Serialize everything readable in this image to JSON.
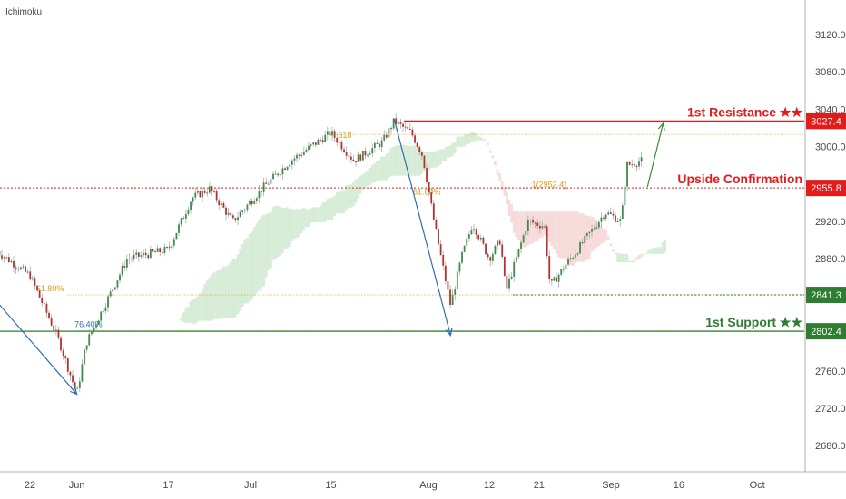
{
  "indicator": "Ichimoku",
  "colors": {
    "up": "#3e8c4a",
    "down": "#b5312e",
    "resistance": "#e31b1b",
    "confirmation": "#e31b1b",
    "support": "#2e7d32",
    "support_minor": "#2e7d32",
    "fib": "#d4a017",
    "arrow_down": "#2f6db5",
    "arrow_up": "#3a8a3a",
    "cloud_green": "#cfe9cf",
    "cloud_red": "#f6d3d3"
  },
  "chart_data": {
    "type": "candlestick",
    "ylim": [
      2648,
      3152
    ],
    "yticks": [
      3120.0,
      3080.0,
      3040.0,
      3000.0,
      2960.0,
      2920.0,
      2880.0,
      2840.0,
      2800.0,
      2760.0,
      2720.0,
      2680.0
    ],
    "xticks": [
      "22",
      "Jun",
      "17",
      "Jul",
      "15",
      "Aug",
      "12",
      "21",
      "Sep",
      "16",
      "Oct"
    ],
    "price_path": [
      [
        "May 15",
        2888
      ],
      [
        "May 22",
        2862
      ],
      [
        "May 28",
        2795
      ],
      [
        "Jun 1",
        2735
      ],
      [
        "Jun 3",
        2790
      ],
      [
        "Jun 10",
        2880
      ],
      [
        "Jun 17",
        2890
      ],
      [
        "Jun 21",
        2945
      ],
      [
        "Jun 24",
        2955
      ],
      [
        "Jun 28",
        2920
      ],
      [
        "Jul 3",
        2955
      ],
      [
        "Jul 8",
        2985
      ],
      [
        "Jul 15",
        3015
      ],
      [
        "Jul 19",
        2985
      ],
      [
        "Jul 24",
        3005
      ],
      [
        "Jul 26",
        3027
      ],
      [
        "Jul 29",
        3015
      ],
      [
        "Jul 31",
        2990
      ],
      [
        "Aug 2",
        2920
      ],
      [
        "Aug 5",
        2830
      ],
      [
        "Aug 7",
        2882
      ],
      [
        "Aug 9",
        2918
      ],
      [
        "Aug 12",
        2880
      ],
      [
        "Aug 14",
        2900
      ],
      [
        "Aug 15",
        2845
      ],
      [
        "Aug 19",
        2920
      ],
      [
        "Aug 22",
        2915
      ],
      [
        "Aug 23",
        2850
      ],
      [
        "Aug 26",
        2875
      ],
      [
        "Aug 28",
        2890
      ],
      [
        "Sep 2",
        2930
      ],
      [
        "Sep 5",
        2920
      ],
      [
        "Sep 6",
        2980
      ],
      [
        "Sep 9",
        2985
      ]
    ],
    "levels": [
      {
        "name": "1st Resistance ★★",
        "price": 3027.4,
        "tag": "3027.4",
        "color": "resistance",
        "style": "solid"
      },
      {
        "name": "Upside Confirmation",
        "price": 2955.8,
        "tag": "2955.8",
        "color": "confirmation",
        "style": "dotted"
      },
      {
        "name": "1st Support ★★",
        "price": 2802.4,
        "tag": "2802.4",
        "color": "support",
        "style": "solid"
      },
      {
        "name": "",
        "price": 2841.3,
        "tag": "2841.3",
        "color": "support_minor",
        "style": "dotted"
      }
    ],
    "fib_lines": [
      {
        "price": 3013,
        "label": "618",
        "x1": "Jul 15",
        "x2": "Oct 10"
      },
      {
        "price": 2952.4,
        "label": "61.80%",
        "x2": "Oct 10"
      },
      {
        "price": 2952.4,
        "label": "1(2952.4)",
        "x1": "Aug 19",
        "x2": "Oct 10"
      },
      {
        "price": 2841.3,
        "label": "61.80%",
        "x1": "May 30",
        "x2": "Oct 10"
      },
      {
        "price": 2803,
        "label": "76.40%",
        "x1": "Jun 1",
        "x2": "Oct 10"
      }
    ],
    "arrows": [
      {
        "from": [
          "May 11",
          2857
        ],
        "to": [
          "Jun 1",
          2735
        ],
        "color": "arrow_down"
      },
      {
        "from": [
          "Jul 26",
          3030
        ],
        "to": [
          "Aug 5",
          2798
        ],
        "color": "arrow_down"
      },
      {
        "from": [
          "Sep 10",
          2957
        ],
        "to": [
          "Sep 13",
          3025
        ],
        "color": "arrow_up"
      }
    ]
  }
}
